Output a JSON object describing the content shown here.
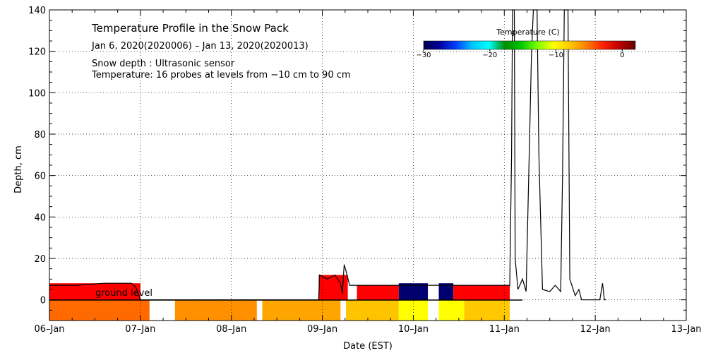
{
  "chart_data": {
    "type": "heatmap",
    "title": "Temperature Profile in the Snow Pack",
    "subtitle": "Jan  6, 2020(2020006) – Jan 13, 2020(2020013)",
    "notes": [
      "Snow depth : Ultrasonic sensor",
      "Temperature: 16 probes at levels from −10 cm to 90 cm"
    ],
    "xlabel": "Date (EST)",
    "ylabel": "Depth, cm",
    "x_range_days": [
      0,
      7
    ],
    "ylim": [
      -10,
      140
    ],
    "x_ticks": [
      {
        "day": 0,
        "label": "06–Jan"
      },
      {
        "day": 1,
        "label": "07–Jan"
      },
      {
        "day": 2,
        "label": "08–Jan"
      },
      {
        "day": 3,
        "label": "09–Jan"
      },
      {
        "day": 4,
        "label": "10–Jan"
      },
      {
        "day": 5,
        "label": "11–Jan"
      },
      {
        "day": 6,
        "label": "12–Jan"
      },
      {
        "day": 7,
        "label": "13–Jan"
      }
    ],
    "y_ticks": [
      0,
      20,
      40,
      60,
      80,
      100,
      120,
      140
    ],
    "ground_level_label": "ground level",
    "colorbar": {
      "title": "Temperature (C)",
      "range": [
        -30,
        2
      ],
      "ticks": [
        {
          "value": -30,
          "label": "−30"
        },
        {
          "value": -20,
          "label": "−20"
        },
        {
          "value": -10,
          "label": "−10"
        },
        {
          "value": 0,
          "label": "0"
        }
      ],
      "stops": [
        "#00004a",
        "#0000a0",
        "#0040ff",
        "#00c8ff",
        "#00ffff",
        "#008c00",
        "#00c800",
        "#80ff00",
        "#ffff00",
        "#ffc800",
        "#ff8000",
        "#ff2000",
        "#c00000",
        "#600000"
      ]
    },
    "snow_segments": [
      {
        "start": 0.0,
        "end": 1.0,
        "top": 8,
        "color": "#ff0000"
      },
      {
        "start": 2.96,
        "end": 3.28,
        "top": 12,
        "color": "#ff0000"
      },
      {
        "start": 3.38,
        "end": 3.84,
        "top": 7,
        "color": "#ff0000"
      },
      {
        "start": 3.84,
        "end": 4.16,
        "top": 8,
        "color": "#000070"
      },
      {
        "start": 4.28,
        "end": 4.44,
        "top": 8,
        "color": "#000070"
      },
      {
        "start": 4.44,
        "end": 5.06,
        "top": 7,
        "color": "#ff0000"
      }
    ],
    "ground_segments": [
      {
        "start": 0.0,
        "end": 1.1,
        "color": "#ff6a00"
      },
      {
        "start": 1.38,
        "end": 2.28,
        "color": "#ff9000"
      },
      {
        "start": 2.34,
        "end": 3.2,
        "color": "#ffa500"
      },
      {
        "start": 3.26,
        "end": 3.84,
        "color": "#ffc400"
      },
      {
        "start": 3.84,
        "end": 4.16,
        "color": "#ffff00"
      },
      {
        "start": 4.28,
        "end": 4.56,
        "color": "#ffff00"
      },
      {
        "start": 4.56,
        "end": 5.06,
        "color": "#ffc800"
      }
    ],
    "snow_depth_line": [
      [
        0.0,
        7
      ],
      [
        0.3,
        7
      ],
      [
        0.6,
        8
      ],
      [
        0.9,
        8
      ],
      [
        0.95,
        6
      ],
      [
        1.0,
        0
      ],
      [
        2.96,
        0
      ],
      [
        2.97,
        12
      ],
      [
        3.05,
        10
      ],
      [
        3.14,
        12
      ],
      [
        3.2,
        8
      ],
      [
        3.22,
        3
      ],
      [
        3.24,
        17
      ],
      [
        3.26,
        14
      ],
      [
        3.3,
        7
      ],
      [
        3.38,
        7
      ],
      [
        3.8,
        7
      ],
      [
        4.4,
        7
      ],
      [
        5.06,
        7
      ],
      [
        5.08,
        70
      ],
      [
        5.09,
        140
      ],
      [
        5.11,
        140
      ],
      [
        5.12,
        20
      ],
      [
        5.15,
        5
      ],
      [
        5.2,
        10
      ],
      [
        5.24,
        4
      ],
      [
        5.3,
        120
      ],
      [
        5.32,
        140
      ],
      [
        5.36,
        140
      ],
      [
        5.38,
        70
      ],
      [
        5.42,
        5
      ],
      [
        5.5,
        4
      ],
      [
        5.56,
        7
      ],
      [
        5.62,
        4
      ],
      [
        5.64,
        60
      ],
      [
        5.66,
        140
      ],
      [
        5.7,
        140
      ],
      [
        5.72,
        10
      ],
      [
        5.78,
        2
      ],
      [
        5.82,
        5
      ],
      [
        5.85,
        0
      ],
      [
        6.05,
        0
      ],
      [
        6.08,
        8
      ],
      [
        6.1,
        0
      ],
      [
        6.12,
        0
      ]
    ]
  }
}
